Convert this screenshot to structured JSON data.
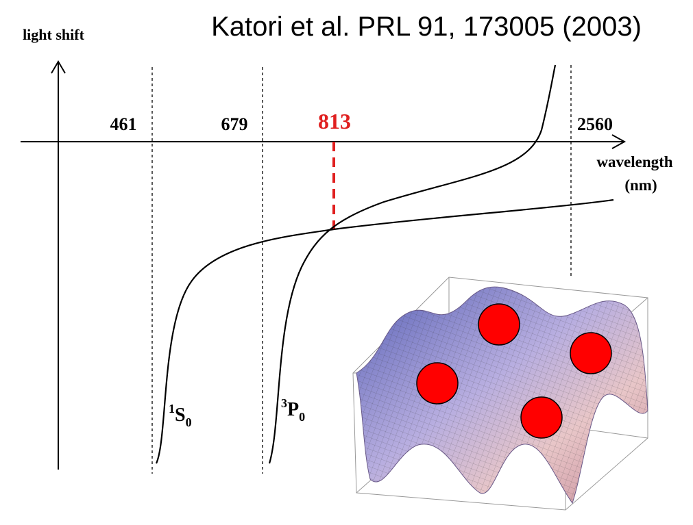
{
  "header": {
    "title": "Katori et al. PRL 91, 173005 (2003)"
  },
  "axes": {
    "y_label": "light shift",
    "x_label": "wavelength",
    "x_unit": "(nm)"
  },
  "markers": [
    {
      "label": "461"
    },
    {
      "label": "679"
    },
    {
      "label": "813"
    },
    {
      "label": "2560"
    }
  ],
  "curves": [
    {
      "sup": "1",
      "main": "S",
      "sub": "0"
    },
    {
      "sup": "3",
      "main": "P",
      "sub": "0"
    }
  ]
}
